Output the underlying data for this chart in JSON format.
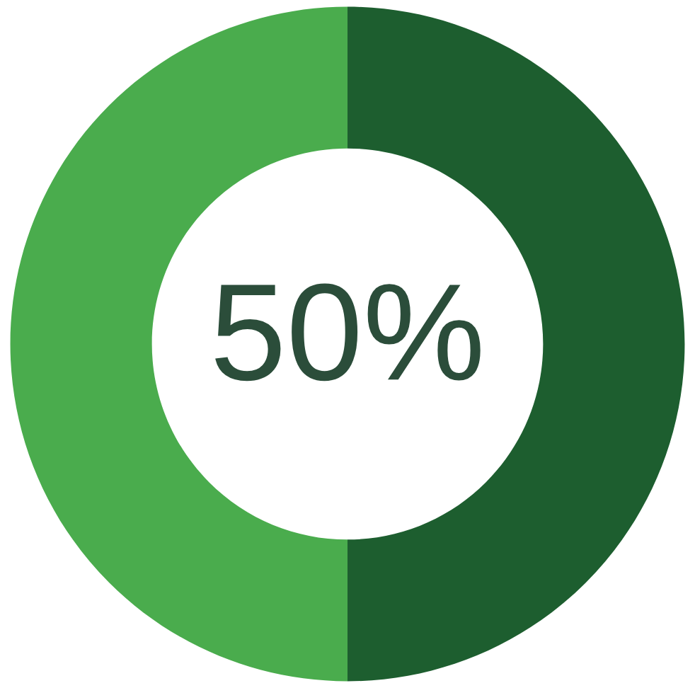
{
  "chart_data": {
    "type": "donut",
    "categories": [
      null,
      null
    ],
    "values": [
      50,
      50
    ],
    "colors": [
      "#1d5e2f",
      "#4aac4d"
    ],
    "annotations": [
      "50%"
    ]
  }
}
